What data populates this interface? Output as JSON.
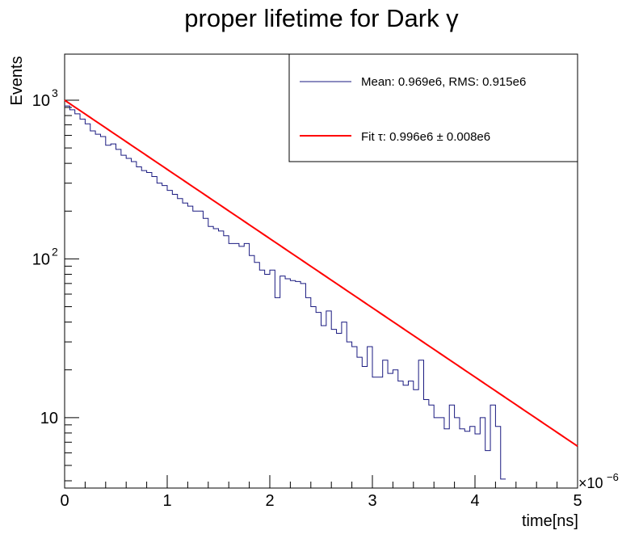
{
  "chart_data": {
    "type": "line",
    "title": "proper lifetime for Dark γ",
    "xlabel": "time[ns]",
    "ylabel": "Events",
    "x_multiplier_label": "×10",
    "x_multiplier_exp": "−6",
    "xlim": [
      0,
      5
    ],
    "ylim": [
      3.6,
      1950
    ],
    "yscale": "log",
    "grid": false,
    "legend_position": "top-right",
    "x_ticks": [
      "0",
      "1",
      "2",
      "3",
      "4",
      "5"
    ],
    "y_ticks": [
      {
        "value": 10,
        "base": "10",
        "exp": ""
      },
      {
        "value": 100,
        "base": "10",
        "exp": "2"
      },
      {
        "value": 1000,
        "base": "10",
        "exp": "3"
      }
    ],
    "histogram": {
      "name": "Mean: 0.969e6, RMS: 0.915e6",
      "color": "#1a1a80",
      "bin_width": 0.05,
      "values": [
        920,
        870,
        820,
        760,
        710,
        640,
        610,
        590,
        520,
        530,
        490,
        450,
        430,
        410,
        380,
        360,
        350,
        330,
        300,
        290,
        270,
        255,
        240,
        225,
        215,
        200,
        200,
        180,
        160,
        155,
        150,
        140,
        125,
        125,
        120,
        125,
        105,
        95,
        85,
        80,
        85,
        57,
        78,
        75,
        73,
        72,
        70,
        57,
        50,
        46,
        38,
        47,
        36,
        34,
        40,
        30,
        28,
        24,
        21,
        28,
        18,
        18,
        23,
        19,
        20,
        17,
        16,
        17,
        15,
        23,
        13,
        12,
        10,
        10,
        8.5,
        12,
        10,
        8.5,
        8.2,
        8.8,
        7.9,
        10,
        6.2,
        12,
        8.8,
        4.1
      ]
    },
    "fit": {
      "name": "Fit τ: 0.996e6 ± 0.008e6",
      "color": "#ff0000",
      "amplitude": 1000,
      "tau": 0.996
    }
  }
}
